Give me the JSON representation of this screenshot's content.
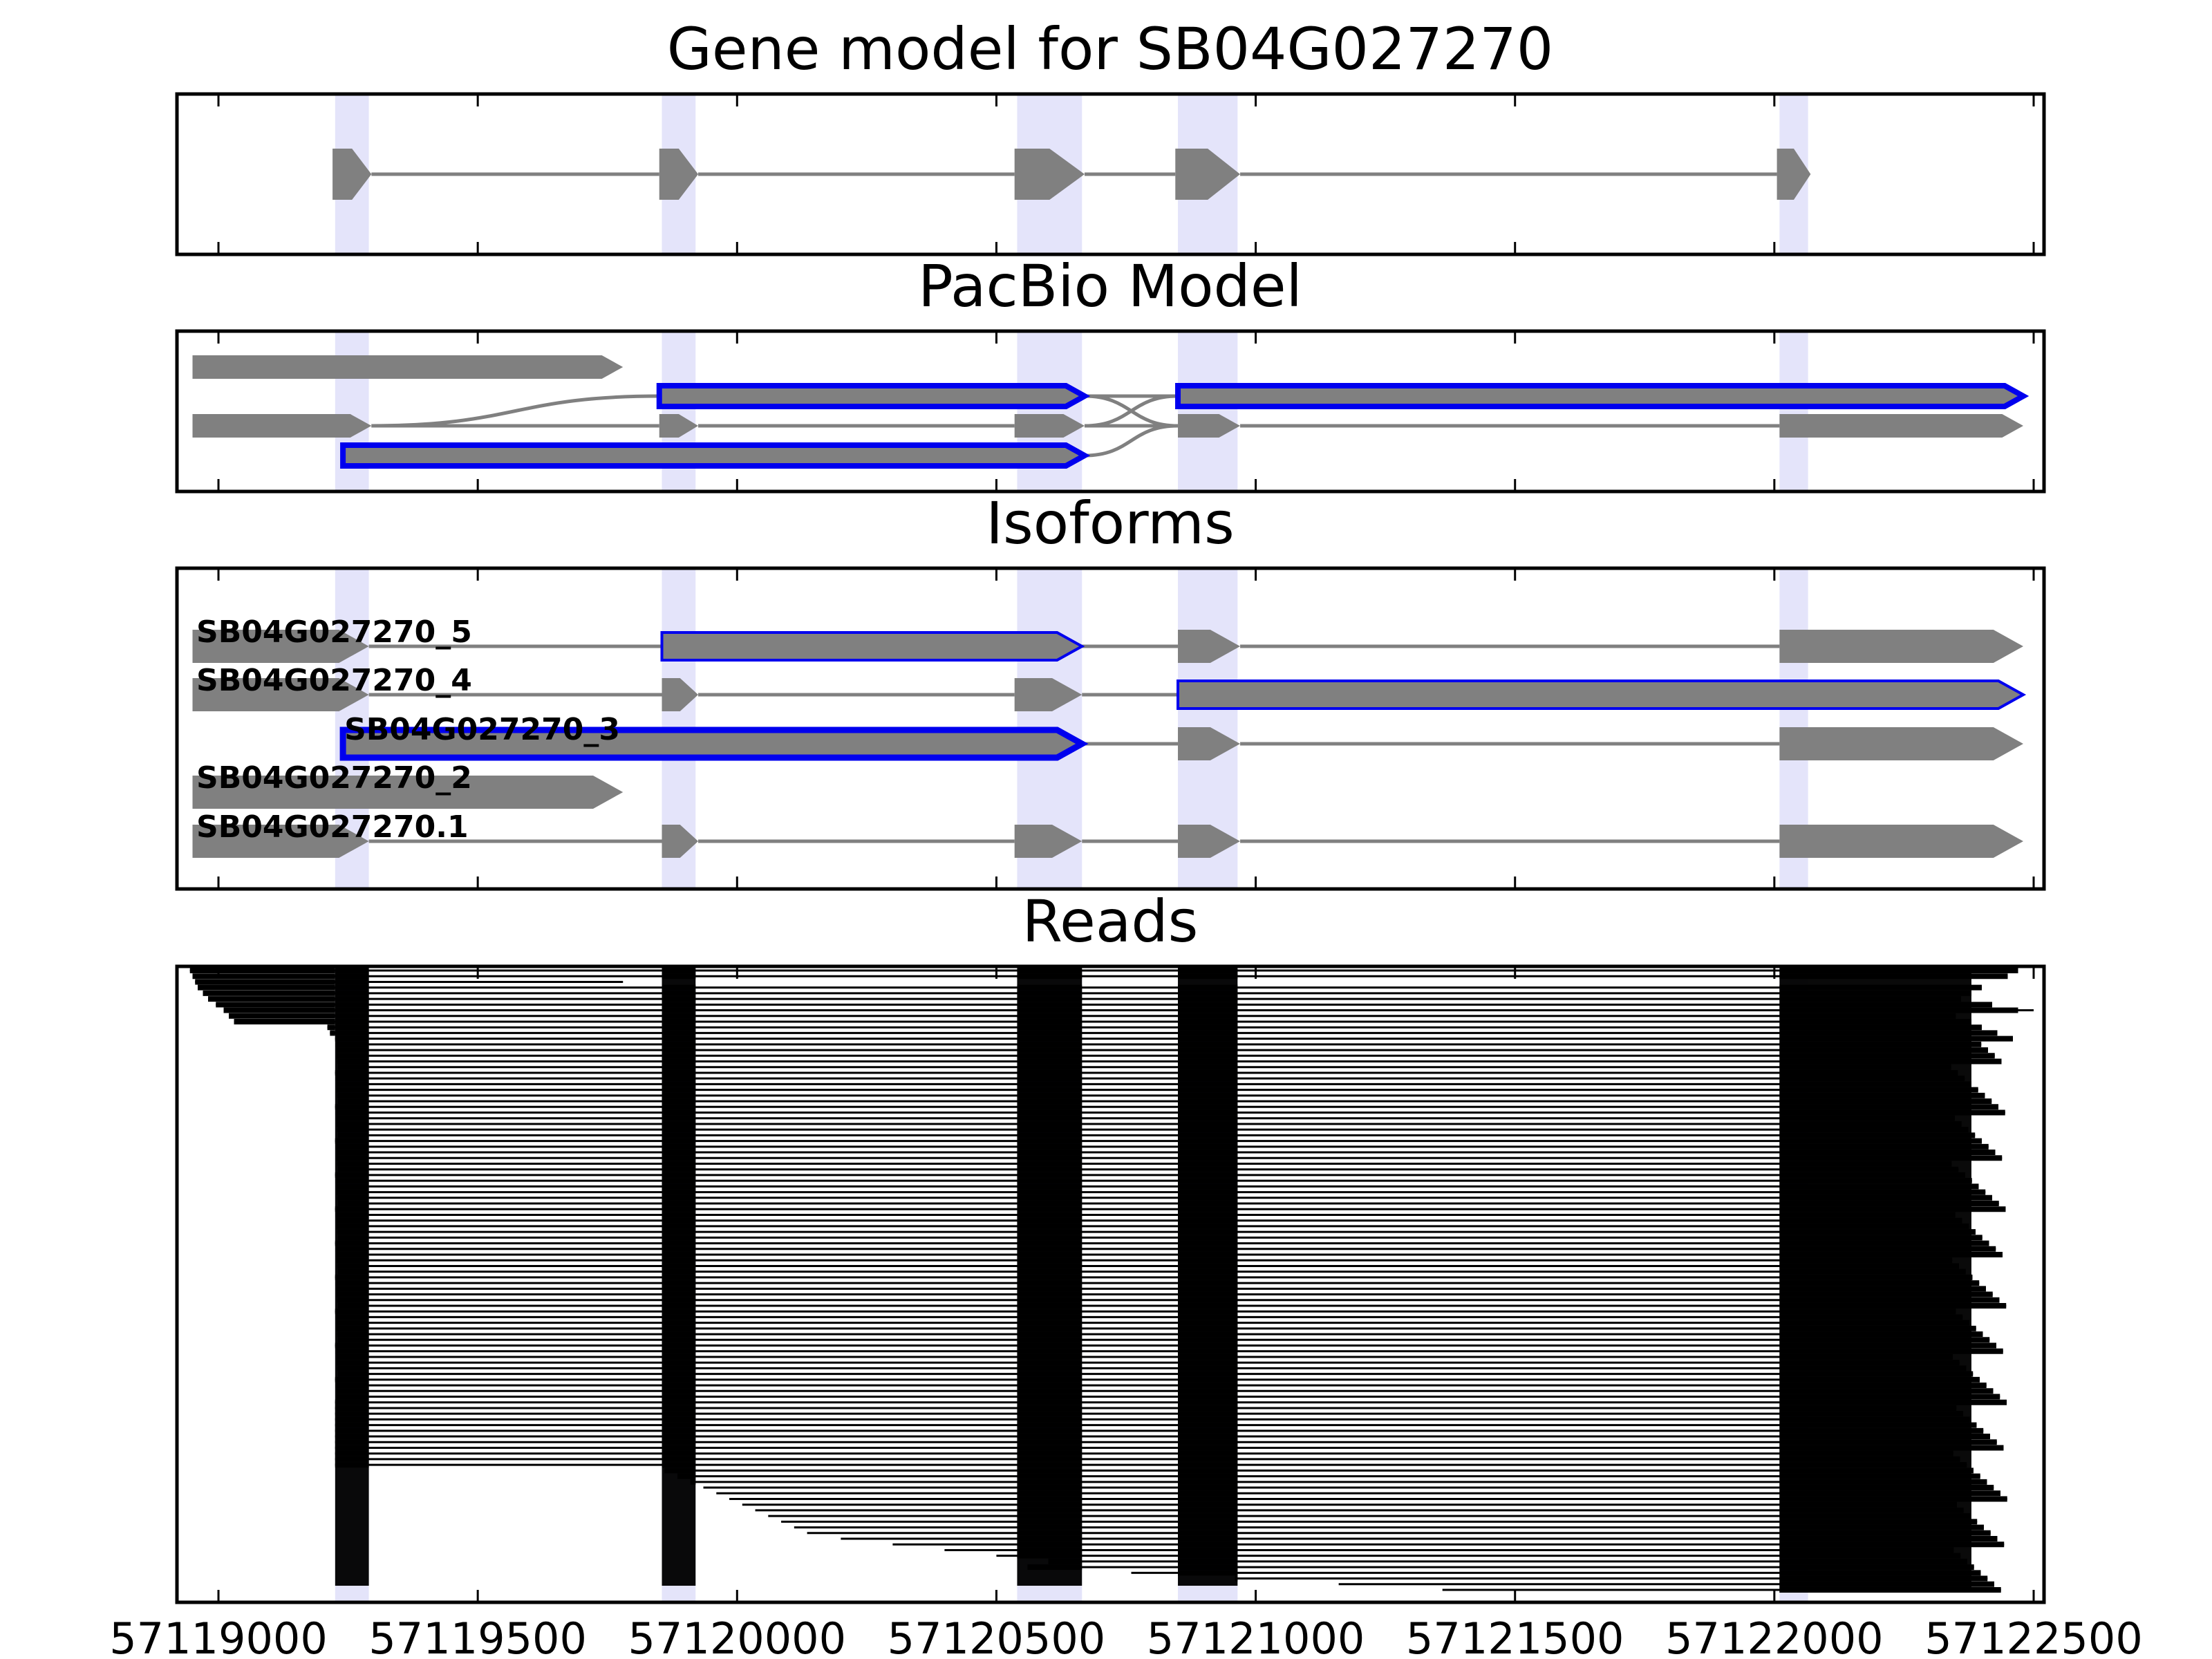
{
  "panels": [
    {
      "id": "gene",
      "title": "Gene model for SB04G027270"
    },
    {
      "id": "pacbio",
      "title": "PacBio Model"
    },
    {
      "id": "isoforms",
      "title": "Isoforms"
    },
    {
      "id": "reads",
      "title": "Reads"
    }
  ],
  "colors": {
    "exon_fill": "#808080",
    "highlight_edge": "#0000ee",
    "shade": "#e4e4fa",
    "read": "#000000",
    "intron": "#808080"
  },
  "x_axis": {
    "min": 57118920,
    "max": 57122520,
    "ticks": [
      57119000,
      57119500,
      57120000,
      57120500,
      57121000,
      57121500,
      57122000,
      57122500
    ],
    "tick_labels": [
      "57119000",
      "57119500",
      "57120000",
      "57120500",
      "57121000",
      "57121500",
      "57122000",
      "57122500"
    ]
  },
  "shaded_regions": [
    [
      57119225,
      57119290
    ],
    [
      57119855,
      57119920
    ],
    [
      57120540,
      57120665
    ],
    [
      57120850,
      57120965
    ],
    [
      57122010,
      57122065
    ]
  ],
  "gene_model": {
    "exons": [
      [
        57119220,
        57119295
      ],
      [
        57119850,
        57119925
      ],
      [
        57120535,
        57120670
      ],
      [
        57120845,
        57120970
      ],
      [
        57122005,
        57122070
      ]
    ]
  },
  "pacbio_model": {
    "rows": [
      {
        "exons": [
          [
            57118950,
            57119780
          ]
        ],
        "highlight": false
      },
      {
        "exons": [
          [
            57119850,
            57120670
          ],
          [
            57120850,
            57122480
          ]
        ],
        "highlight": true
      },
      {
        "exons": [
          [
            57118950,
            57119295
          ],
          [
            57119850,
            57119925
          ],
          [
            57120535,
            57120670
          ],
          [
            57120850,
            57120970
          ],
          [
            57122010,
            57122480
          ]
        ],
        "highlight": false
      },
      {
        "exons": [
          [
            57119240,
            57120670
          ]
        ],
        "highlight": true
      }
    ]
  },
  "isoforms": [
    {
      "label": "SB04G027270_5",
      "exons": [
        [
          57118950,
          57119290
        ],
        [
          57119855,
          57120665
        ],
        [
          57120850,
          57120970
        ],
        [
          57122010,
          57122480
        ]
      ],
      "highlight_exon": 1
    },
    {
      "label": "SB04G027270_4",
      "exons": [
        [
          57118950,
          57119290
        ],
        [
          57119855,
          57119925
        ],
        [
          57120535,
          57120665
        ],
        [
          57120850,
          57122480
        ]
      ],
      "highlight_exon": 3
    },
    {
      "label": "SB04G027270_3",
      "exons": [
        [
          57119240,
          57120665
        ],
        [
          57120850,
          57120970
        ],
        [
          57122010,
          57122480
        ]
      ],
      "highlight_exon": 0
    },
    {
      "label": "SB04G027270_2",
      "exons": [
        [
          57118950,
          57119780
        ]
      ],
      "highlight_exon": -1
    },
    {
      "label": "SB04G027270.1",
      "exons": [
        [
          57118950,
          57119290
        ],
        [
          57119855,
          57119925
        ],
        [
          57120535,
          57120665
        ],
        [
          57120850,
          57120970
        ],
        [
          57122010,
          57122480
        ]
      ],
      "highlight_exon": -1
    }
  ],
  "reads": {
    "count": 110,
    "exon_columns": [
      [
        57119225,
        57119290
      ],
      [
        57119855,
        57119920
      ],
      [
        57120540,
        57120665
      ],
      [
        57120850,
        57120965
      ],
      [
        57122010,
        57122470
      ]
    ],
    "starts_sample": [
      57118945,
      57118950,
      57118955,
      57118960,
      57118970,
      57118980,
      57118995,
      57119010,
      57119020,
      57119030,
      57119210,
      57119215,
      57119225
    ],
    "ends_sample": [
      57122470,
      57122450,
      57122420,
      57122400,
      57122380,
      57122360,
      57122420,
      57122500,
      57122350,
      57122380,
      57122400,
      57122430,
      57122460
    ]
  }
}
